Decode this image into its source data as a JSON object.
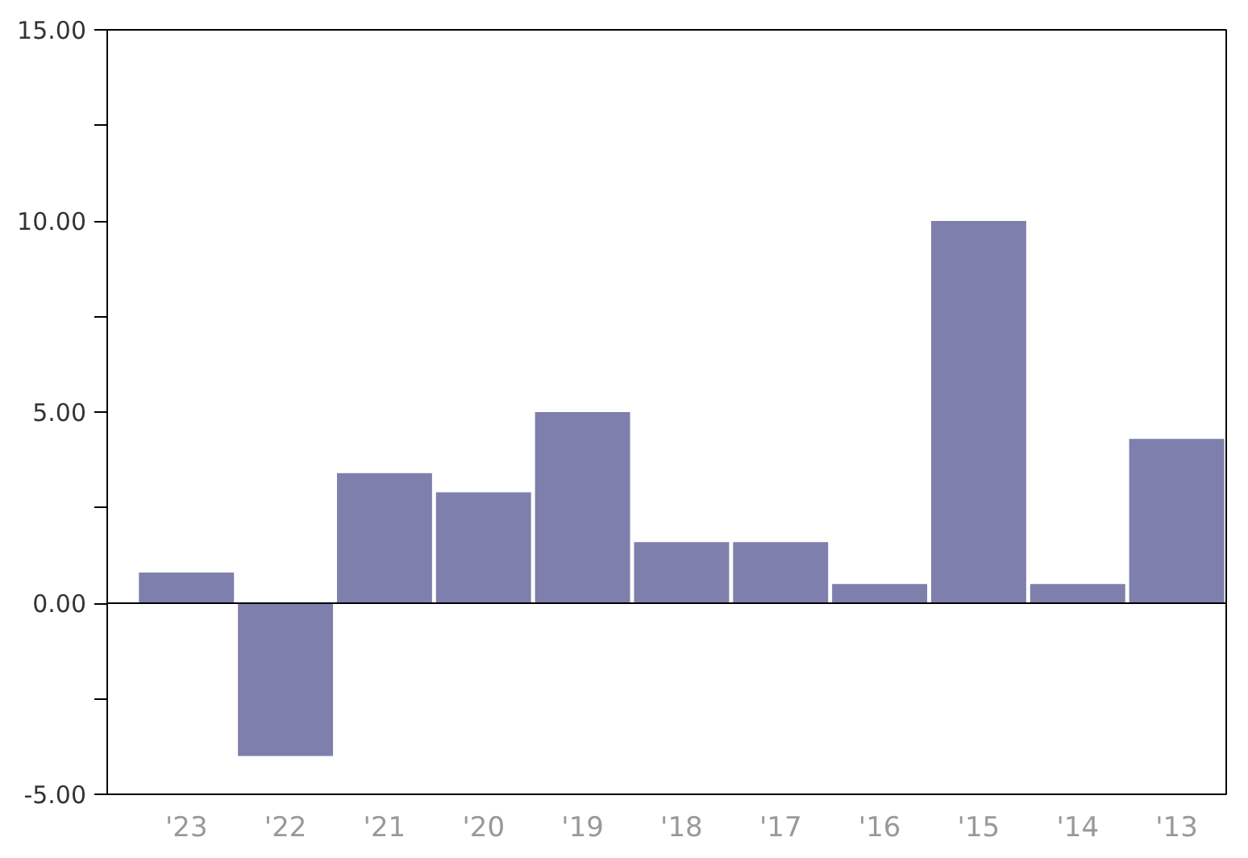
{
  "chart_data": {
    "type": "bar",
    "categories": [
      "'23",
      "'22",
      "'21",
      "'20",
      "'19",
      "'18",
      "'17",
      "'16",
      "'15",
      "'14",
      "'13"
    ],
    "values": [
      0.8,
      -4.0,
      3.4,
      2.9,
      5.0,
      1.6,
      1.6,
      0.5,
      10.0,
      0.5,
      4.3
    ],
    "color": "#7f7fad",
    "ylim": [
      -5,
      15
    ],
    "yticks": [
      {
        "value": -5,
        "label": "-5.00"
      },
      {
        "value": -2.5,
        "label": null
      },
      {
        "value": 0,
        "label": "0.00"
      },
      {
        "value": 2.5,
        "label": null
      },
      {
        "value": 5,
        "label": "5.00"
      },
      {
        "value": 7.5,
        "label": null
      },
      {
        "value": 10,
        "label": "10.00"
      },
      {
        "value": 12.5,
        "label": null
      },
      {
        "value": 15,
        "label": "15.00"
      }
    ],
    "ref_lines": [
      {
        "axis": "y",
        "value": 0,
        "color": "#000000"
      }
    ],
    "grid": false
  }
}
